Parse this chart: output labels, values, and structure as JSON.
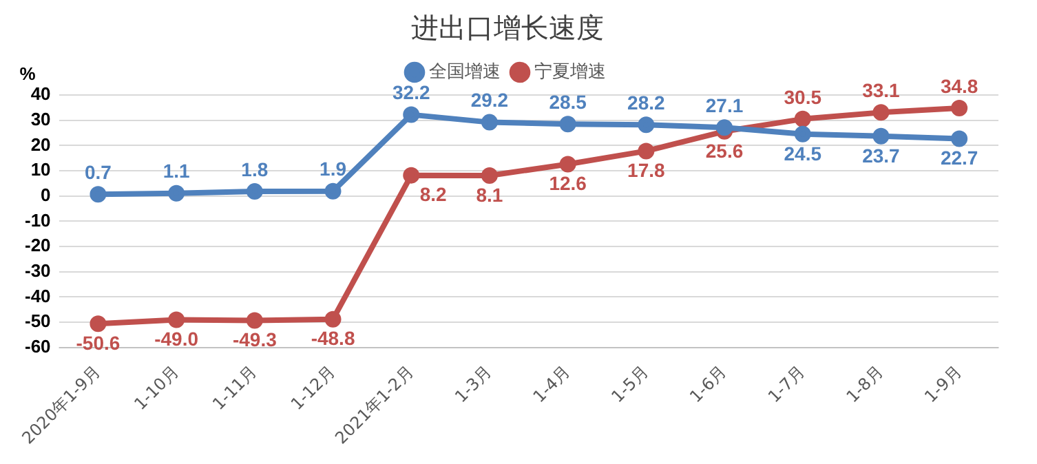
{
  "chart_data": {
    "type": "line",
    "title": "进出口增长速度",
    "ylabel": "%",
    "categories": [
      "2020年1-9月",
      "1-10月",
      "1-11月",
      "1-12月",
      "2021年1-2月",
      "1-3月",
      "1-4月",
      "1-5月",
      "1-6月",
      "1-7月",
      "1-8月",
      "1-9月"
    ],
    "series": [
      {
        "name": "全国增速",
        "color": "#4f81bd",
        "values": [
          0.7,
          1.1,
          1.8,
          1.9,
          32.2,
          29.2,
          28.5,
          28.2,
          27.1,
          24.5,
          23.7,
          22.7
        ],
        "value_labels": [
          "0.7",
          "1.1",
          "1.8",
          "1.9",
          "32.2",
          "29.2",
          "28.5",
          "28.2",
          "27.1",
          "24.5",
          "23.7",
          "22.7"
        ]
      },
      {
        "name": "宁夏增速",
        "color": "#c0504d",
        "values": [
          -50.6,
          -49.0,
          -49.3,
          -48.8,
          8.2,
          8.1,
          12.6,
          17.8,
          25.6,
          30.5,
          33.1,
          34.8
        ],
        "value_labels": [
          "-50.6",
          "-49.0",
          "-49.3",
          "-48.8",
          "8.2",
          "8.1",
          "12.6",
          "17.8",
          "25.6",
          "30.5",
          "33.1",
          "34.8"
        ]
      }
    ],
    "ylim": [
      -60,
      40
    ],
    "yticks": [
      -60,
      -50,
      -40,
      -30,
      -20,
      -10,
      0,
      10,
      20,
      30,
      40
    ],
    "grid": "y",
    "legend": "top",
    "marker": "circle",
    "line_style": "solid"
  }
}
